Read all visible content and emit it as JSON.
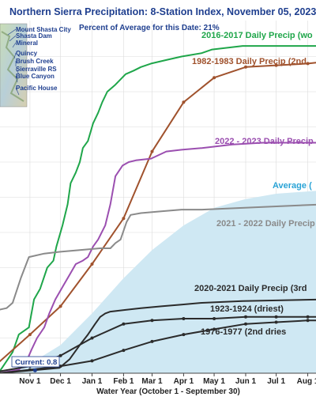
{
  "chart_data": {
    "type": "line",
    "title": "Northern Sierra Precipitation: 8-Station Index, November 05, 2023",
    "subtitle": "Percent of Average for this Date: 21%",
    "xlabel": "Water Year (October 1 - September 30)",
    "ylabel": "",
    "x_tick_labels": [
      "Nov 1",
      "Dec 1",
      "Jan 1",
      "Feb 1",
      "Mar 1",
      "Apr 1",
      "May 1",
      "Jun 1",
      "Jul 1",
      "Aug 1"
    ],
    "x_tick_days": [
      31,
      61,
      92,
      123,
      151,
      182,
      212,
      243,
      273,
      304
    ],
    "xlim": [
      0,
      320
    ],
    "ylim": [
      0,
      95
    ],
    "grid": true,
    "current_label": "Current: 0.8",
    "current_value": 0.8,
    "map_stations": [
      "Mount Shasta City",
      "Shasta Dam",
      "Mineral",
      "Quincy",
      "Brush Creek",
      "Sierraville RS",
      "Blue Canyon",
      "Pacific House"
    ],
    "series": [
      {
        "name": "Average",
        "label": "Average (",
        "style": "area",
        "color": "#cfe8f3",
        "label_color": "#29a3d6",
        "points": [
          [
            0,
            0
          ],
          [
            30,
            2.5
          ],
          [
            61,
            8
          ],
          [
            92,
            17
          ],
          [
            123,
            27
          ],
          [
            151,
            35
          ],
          [
            182,
            42
          ],
          [
            212,
            47
          ],
          [
            243,
            49.5
          ],
          [
            273,
            51
          ],
          [
            320,
            52
          ]
        ]
      },
      {
        "name": "2016-2017",
        "label": "2016-2017 Daily Precip (wo",
        "color": "#1fa64a",
        "points": [
          [
            0,
            0
          ],
          [
            14,
            6
          ],
          [
            20,
            11
          ],
          [
            30,
            13
          ],
          [
            35,
            21
          ],
          [
            41,
            24
          ],
          [
            48,
            30
          ],
          [
            54,
            32
          ],
          [
            57,
            36
          ],
          [
            63,
            42
          ],
          [
            68,
            48
          ],
          [
            71,
            54
          ],
          [
            76,
            57
          ],
          [
            80,
            60
          ],
          [
            83,
            64
          ],
          [
            88,
            66
          ],
          [
            93,
            71
          ],
          [
            98,
            74
          ],
          [
            102,
            77
          ],
          [
            107,
            80
          ],
          [
            115,
            82
          ],
          [
            125,
            85
          ],
          [
            133,
            86
          ],
          [
            140,
            87
          ],
          [
            150,
            88
          ],
          [
            165,
            89
          ],
          [
            180,
            90
          ],
          [
            200,
            91
          ],
          [
            210,
            92
          ],
          [
            240,
            93
          ],
          [
            320,
            93
          ]
        ]
      },
      {
        "name": "1982-1983",
        "label": "1982-1983 Daily Precip (2nd",
        "color": "#a0522d",
        "markers": true,
        "points": [
          [
            0,
            3
          ],
          [
            31,
            11
          ],
          [
            61,
            19
          ],
          [
            92,
            31
          ],
          [
            123,
            44
          ],
          [
            151,
            63
          ],
          [
            182,
            77
          ],
          [
            212,
            84
          ],
          [
            243,
            87
          ],
          [
            273,
            87.5
          ],
          [
            304,
            88
          ],
          [
            320,
            88.5
          ]
        ]
      },
      {
        "name": "2022 - 2023",
        "label": "2022 - 2023 Daily Precip",
        "color": "#9b4fb0",
        "points": [
          [
            0,
            0
          ],
          [
            20,
            1
          ],
          [
            27,
            3
          ],
          [
            33,
            7
          ],
          [
            38,
            10
          ],
          [
            45,
            13
          ],
          [
            50,
            17
          ],
          [
            56,
            21
          ],
          [
            64,
            25
          ],
          [
            70,
            28
          ],
          [
            76,
            31
          ],
          [
            83,
            32
          ],
          [
            88,
            33
          ],
          [
            93,
            36
          ],
          [
            98,
            38
          ],
          [
            105,
            42
          ],
          [
            110,
            48
          ],
          [
            115,
            56
          ],
          [
            122,
            59
          ],
          [
            128,
            60
          ],
          [
            135,
            60.5
          ],
          [
            150,
            61
          ],
          [
            165,
            63
          ],
          [
            180,
            63.5
          ],
          [
            200,
            64
          ],
          [
            230,
            65
          ],
          [
            260,
            65.5
          ],
          [
            320,
            65.5
          ]
        ]
      },
      {
        "name": "2021 - 2022",
        "label": "2021 - 2022 Daily Precip",
        "color": "#8a8a8a",
        "points": [
          [
            0,
            18
          ],
          [
            8,
            18.5
          ],
          [
            14,
            20
          ],
          [
            22,
            27
          ],
          [
            30,
            33
          ],
          [
            45,
            34
          ],
          [
            60,
            34.5
          ],
          [
            80,
            35
          ],
          [
            100,
            35.5
          ],
          [
            110,
            35.5
          ],
          [
            115,
            37
          ],
          [
            120,
            38
          ],
          [
            126,
            43
          ],
          [
            130,
            45
          ],
          [
            140,
            45.5
          ],
          [
            160,
            46
          ],
          [
            180,
            46.5
          ],
          [
            200,
            46.5
          ],
          [
            240,
            47
          ],
          [
            280,
            47.5
          ],
          [
            320,
            48
          ]
        ]
      },
      {
        "name": "2020-2021",
        "label": "2020-2021 Daily Precip (3rd",
        "color": "#2b2b2b",
        "points": [
          [
            0,
            0
          ],
          [
            20,
            0.5
          ],
          [
            40,
            1
          ],
          [
            60,
            1.5
          ],
          [
            70,
            4
          ],
          [
            80,
            8
          ],
          [
            88,
            11
          ],
          [
            95,
            14
          ],
          [
            100,
            16
          ],
          [
            105,
            17
          ],
          [
            110,
            17.5
          ],
          [
            125,
            18
          ],
          [
            140,
            18.5
          ],
          [
            160,
            19
          ],
          [
            180,
            19.5
          ],
          [
            200,
            20
          ],
          [
            240,
            20.5
          ],
          [
            320,
            21
          ]
        ]
      },
      {
        "name": "1923-1924",
        "label": "1923-1924 (driest)",
        "color": "#2b2b2b",
        "markers": true,
        "points": [
          [
            0,
            0.5
          ],
          [
            31,
            2
          ],
          [
            61,
            5
          ],
          [
            92,
            10
          ],
          [
            123,
            14
          ],
          [
            151,
            15
          ],
          [
            182,
            15.5
          ],
          [
            212,
            15.5
          ],
          [
            243,
            16
          ],
          [
            273,
            16
          ],
          [
            304,
            16
          ],
          [
            320,
            16
          ]
        ]
      },
      {
        "name": "1976-1977",
        "label": "1976-1977 (2nd dries",
        "color": "#2b2b2b",
        "markers": true,
        "points": [
          [
            0,
            0
          ],
          [
            31,
            1
          ],
          [
            61,
            2
          ],
          [
            92,
            3.5
          ],
          [
            123,
            6.5
          ],
          [
            151,
            9
          ],
          [
            182,
            11
          ],
          [
            212,
            12.5
          ],
          [
            243,
            14
          ],
          [
            273,
            14.5
          ],
          [
            304,
            15
          ],
          [
            320,
            15
          ]
        ]
      }
    ]
  }
}
